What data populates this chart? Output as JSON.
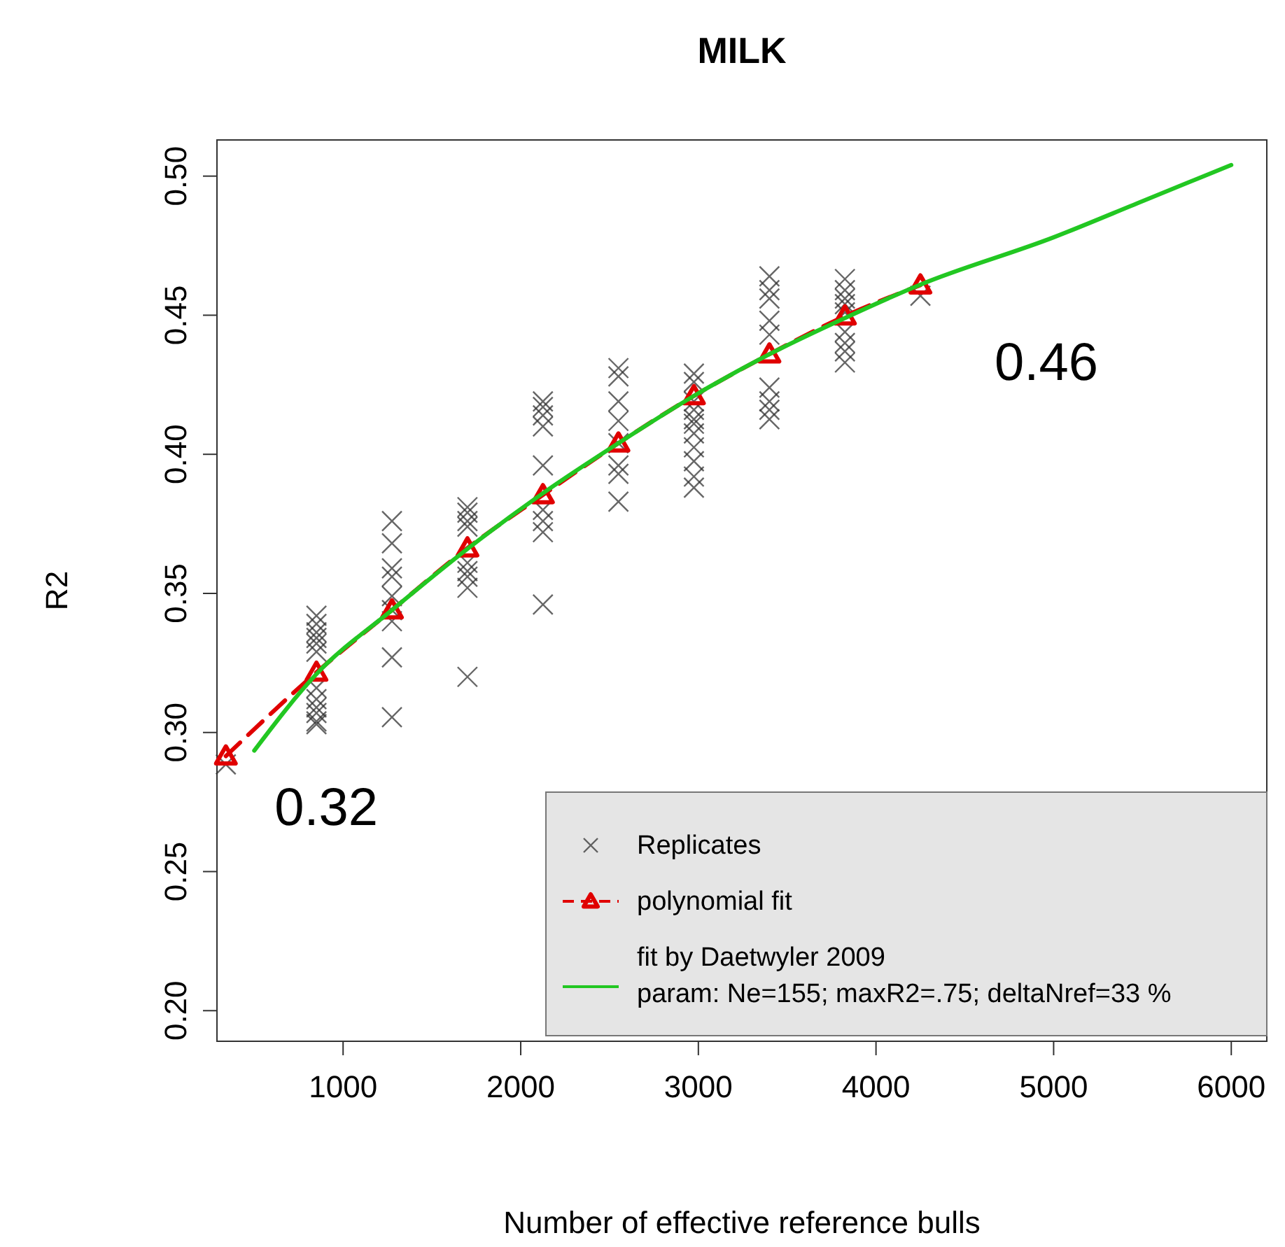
{
  "chart_data": {
    "type": "line",
    "title": "MILK",
    "xlabel": "Number of effective reference bulls",
    "ylabel": "R2",
    "xlim": [
      290,
      6200
    ],
    "xticks": [
      1000,
      2000,
      3000,
      4000,
      5000,
      6000
    ],
    "ylim": [
      0.189,
      0.513
    ],
    "yticks": [
      {
        "value": 0.2,
        "label": "0.20"
      },
      0.25,
      {
        "value": 0.3,
        "label": "0.30"
      },
      0.35,
      {
        "value": 0.4,
        "label": "0.40"
      },
      0.45,
      {
        "value": 0.5,
        "label": "0.50"
      }
    ],
    "grid": false,
    "legend": "bottom right",
    "annotations": [
      {
        "text": "0.32",
        "x": 850,
        "y": 0.321
      },
      {
        "text": "0.46",
        "x": 4250,
        "y": 0.461
      }
    ],
    "series": [
      {
        "name": "Replicates",
        "type": "scatter",
        "marker": "cross",
        "color": "#333333",
        "x": [
          340,
          850,
          850,
          850,
          850,
          850,
          850,
          850,
          850,
          850,
          850,
          850,
          850,
          1275,
          1275,
          1275,
          1275,
          1275,
          1275,
          1275,
          1275,
          1275,
          1700,
          1700,
          1700,
          1700,
          1700,
          1700,
          1700,
          1700,
          1700,
          2125,
          2125,
          2125,
          2125,
          2125,
          2125,
          2125,
          2125,
          2125,
          2550,
          2550,
          2550,
          2550,
          2550,
          2550,
          2550,
          2550,
          2975,
          2975,
          2975,
          2975,
          2975,
          2975,
          2975,
          2975,
          2975,
          2975,
          2975,
          3400,
          3400,
          3400,
          3400,
          3400,
          3400,
          3400,
          3400,
          3400,
          3825,
          3825,
          3825,
          3825,
          3825,
          3825,
          3825,
          3825,
          3825,
          4250
        ],
        "values": [
          0.2885,
          0.342,
          0.339,
          0.336,
          0.334,
          0.332,
          0.329,
          0.316,
          0.312,
          0.309,
          0.307,
          0.304,
          0.303,
          0.376,
          0.368,
          0.359,
          0.356,
          0.349,
          0.344,
          0.34,
          0.327,
          0.3055,
          0.381,
          0.379,
          0.376,
          0.374,
          0.361,
          0.358,
          0.356,
          0.352,
          0.32,
          0.419,
          0.417,
          0.414,
          0.41,
          0.396,
          0.38,
          0.376,
          0.372,
          0.346,
          0.431,
          0.428,
          0.419,
          0.412,
          0.404,
          0.396,
          0.393,
          0.383,
          0.429,
          0.426,
          0.419,
          0.416,
          0.4126,
          0.411,
          0.4075,
          0.4025,
          0.3975,
          0.392,
          0.388,
          0.464,
          0.459,
          0.456,
          0.448,
          0.443,
          0.424,
          0.419,
          0.416,
          0.4126,
          0.463,
          0.459,
          0.456,
          0.454,
          0.451,
          0.444,
          0.44,
          0.437,
          0.433,
          0.457
        ]
      },
      {
        "name": "polynomial fit",
        "marker": "triangle",
        "line_style": "dashed",
        "color": "#e00000",
        "x": [
          340,
          850,
          1275,
          1700,
          2125,
          2550,
          2975,
          3400,
          3825,
          4250
        ],
        "values": [
          0.2915,
          0.3216,
          0.344,
          0.3663,
          0.3854,
          0.404,
          0.421,
          0.436,
          0.4497,
          0.4608
        ]
      },
      {
        "name": "fit by Daetwyler 2009\nparam: Ne=155; maxR2=.75; deltaNref=33 %",
        "marker": "none",
        "line_style": "solid",
        "color": "#22c722",
        "x": [
          500,
          850,
          1275,
          1700,
          2125,
          2550,
          2975,
          3400,
          3825,
          4250,
          5000,
          5500,
          6000
        ],
        "values": [
          0.2935,
          0.321,
          0.344,
          0.366,
          0.386,
          0.404,
          0.421,
          0.436,
          0.449,
          0.461,
          0.478,
          0.491,
          0.504
        ]
      }
    ]
  }
}
